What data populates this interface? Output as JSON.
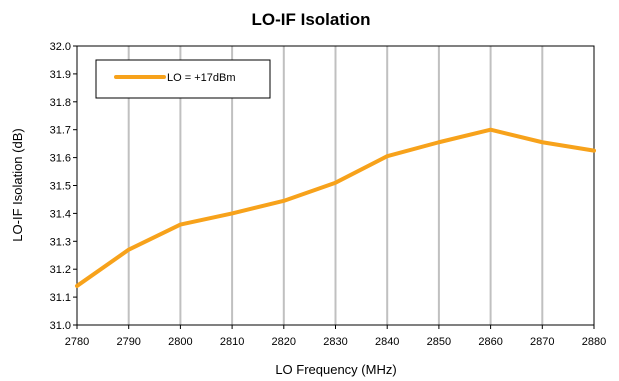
{
  "chart_data": {
    "type": "line",
    "title": "LO-IF Isolation",
    "xlabel": "LO Frequency (MHz)",
    "ylabel": "LO-IF Isolation (dB)",
    "xlim": [
      2780,
      2880
    ],
    "ylim": [
      31.0,
      32.0
    ],
    "x_ticks": [
      "2780",
      "2790",
      "2800",
      "2810",
      "2820",
      "2830",
      "2840",
      "2850",
      "2860",
      "2870",
      "2880"
    ],
    "y_ticks": [
      "31.0",
      "31.1",
      "31.2",
      "31.3",
      "31.4",
      "31.5",
      "31.6",
      "31.7",
      "31.8",
      "31.9",
      "32.0"
    ],
    "grid": "vertical",
    "legend_position": "top-left",
    "series": [
      {
        "name": "LO = +17dBm",
        "color": "#F7A21B",
        "x": [
          2780,
          2790,
          2800,
          2810,
          2820,
          2830,
          2840,
          2850,
          2860,
          2870,
          2880
        ],
        "y": [
          31.14,
          31.27,
          31.36,
          31.4,
          31.445,
          31.51,
          31.605,
          31.655,
          31.7,
          31.655,
          31.625
        ]
      }
    ]
  }
}
